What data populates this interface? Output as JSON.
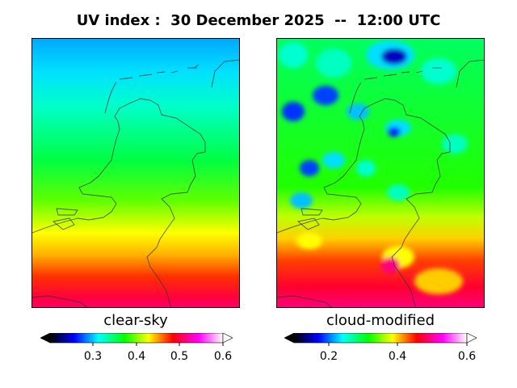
{
  "title": "UV index :  30 December 2025  --  12:00 UTC",
  "panels": [
    {
      "label": "clear-sky",
      "colorbar": {
        "min": 0.2,
        "max": 0.6,
        "ticks": [
          "0.3",
          "0.4",
          "0.5",
          "0.6"
        ],
        "extend": "both"
      }
    },
    {
      "label": "cloud-modified",
      "colorbar": {
        "min": 0.1,
        "max": 0.6,
        "ticks": [
          "0.2",
          "0.4",
          "0.6"
        ],
        "extend": "both"
      }
    }
  ],
  "colormap": [
    "#000000",
    "#0000ff",
    "#00ffff",
    "#00ff00",
    "#ffff00",
    "#ff0000",
    "#ff00ff",
    "#ffffff"
  ]
}
